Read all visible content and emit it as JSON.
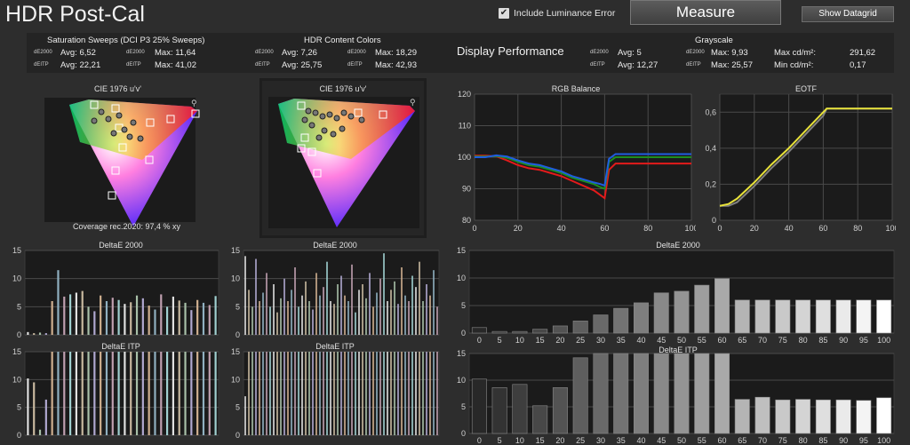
{
  "header": {
    "title": "HDR Post-Cal",
    "include_luminance_label": "Include Luminance Error",
    "measure_label": "Measure",
    "show_datagrid_label": "Show Datagrid"
  },
  "stats": {
    "saturation": {
      "title": "Saturation Sweeps (DCI P3 25% Sweeps)",
      "de2000_tag": "dE2000",
      "deitp_tag": "dEITP",
      "de2000_avg": "Avg: 6,52",
      "de2000_max": "Max: 11,64",
      "deitp_avg": "Avg: 22,21",
      "deitp_max": "Max: 41,02"
    },
    "hdr_colors": {
      "title": "HDR Content Colors",
      "de2000_tag": "dE2000",
      "deitp_tag": "dEITP",
      "de2000_avg": "Avg: 7,26",
      "de2000_max": "Max: 18,29",
      "deitp_avg": "Avg: 25,75",
      "deitp_max": "Max: 42,93"
    },
    "display_performance": "Display Performance",
    "grayscale": {
      "title": "Grayscale",
      "de2000_tag": "dE2000",
      "deitp_tag": "dEITP",
      "de2000_avg": "Avg: 5",
      "de2000_max": "Max: 9,93",
      "deitp_avg": "Avg: 12,27",
      "deitp_max": "Max: 25,57",
      "max_cd_label": "Max cd/m²:",
      "max_cd": "291,62",
      "min_cd_label": "Min cd/m²:",
      "min_cd": "0,17"
    }
  },
  "cie": {
    "left_title": "CIE 1976 u'v'",
    "right_title": "CIE 1976 u'v'",
    "coverage": "Coverage rec.2020:  97,4 % xy"
  },
  "colors": {
    "background": "#2d2d2d",
    "plot_bg": "#1b1b1b",
    "red": "#e31b1b",
    "green": "#1e8e1e",
    "blue": "#1f5de0",
    "eotf_target": "#808080",
    "eotf_measured": "#e8e23a"
  },
  "chart_data": [
    {
      "type": "line",
      "title": "RGB Balance",
      "xlim": [
        0,
        100
      ],
      "ylim": [
        80,
        120
      ],
      "xticks": [
        "0",
        "20",
        "40",
        "60",
        "80",
        "100"
      ],
      "yticks": [
        "80",
        "90",
        "100",
        "110",
        "120"
      ],
      "grid": true,
      "series": [
        {
          "color": "#e31b1b",
          "x": [
            0,
            5,
            10,
            15,
            20,
            25,
            30,
            35,
            40,
            45,
            50,
            55,
            58,
            60,
            62,
            65,
            70,
            75,
            80,
            85,
            90,
            95,
            100
          ],
          "y": [
            100.5,
            100.5,
            100.3,
            99,
            97.5,
            96.5,
            96,
            95,
            94,
            92.5,
            91,
            89.5,
            88,
            87,
            96,
            98,
            98,
            98,
            98,
            98,
            98,
            98,
            98
          ]
        },
        {
          "color": "#1e8e1e",
          "x": [
            0,
            5,
            10,
            15,
            20,
            25,
            30,
            35,
            40,
            45,
            50,
            55,
            58,
            60,
            62,
            65,
            70,
            75,
            80,
            85,
            90,
            95,
            100
          ],
          "y": [
            100.2,
            100.2,
            100.4,
            99.8,
            98.5,
            97.5,
            97,
            96,
            95,
            93.5,
            92.5,
            91.5,
            90.5,
            90,
            98.5,
            100,
            100,
            100,
            100,
            100,
            100,
            100,
            100
          ]
        },
        {
          "color": "#1f5de0",
          "x": [
            0,
            5,
            10,
            15,
            20,
            25,
            30,
            35,
            40,
            45,
            50,
            55,
            58,
            60,
            62,
            65,
            70,
            75,
            80,
            85,
            90,
            95,
            100
          ],
          "y": [
            100,
            100,
            100.6,
            100.2,
            99,
            98,
            97.5,
            96.5,
            95.5,
            94,
            93,
            92,
            91.5,
            91,
            99.5,
            101,
            101,
            101,
            101,
            101,
            101,
            101,
            101
          ]
        }
      ]
    },
    {
      "type": "line",
      "title": "EOTF",
      "xlim": [
        0,
        100
      ],
      "ylim": [
        0,
        0.7
      ],
      "xticks": [
        "0",
        "20",
        "40",
        "60",
        "80",
        "100"
      ],
      "yticks": [
        "0",
        "0,2",
        "0,4",
        "0,6"
      ],
      "grid": true,
      "series": [
        {
          "color": "#808080",
          "x": [
            0,
            5,
            10,
            20,
            30,
            40,
            50,
            60,
            62,
            65,
            70,
            80,
            90,
            100
          ],
          "y": [
            0.08,
            0.08,
            0.1,
            0.19,
            0.29,
            0.38,
            0.48,
            0.58,
            0.62,
            0.62,
            0.62,
            0.62,
            0.62,
            0.62
          ]
        },
        {
          "color": "#e8e23a",
          "x": [
            0,
            5,
            10,
            20,
            30,
            40,
            50,
            60,
            62,
            65,
            70,
            80,
            90,
            100
          ],
          "y": [
            0.08,
            0.09,
            0.12,
            0.21,
            0.31,
            0.4,
            0.5,
            0.6,
            0.62,
            0.62,
            0.62,
            0.62,
            0.62,
            0.62
          ]
        }
      ]
    },
    {
      "type": "bar",
      "title": "DeltaE 2000",
      "ylim": [
        0,
        15
      ],
      "yticks": [
        "0",
        "5",
        "10",
        "15"
      ],
      "categories": [
        "0",
        "5",
        "10",
        "15",
        "20",
        "25",
        "30",
        "35",
        "40",
        "45",
        "50",
        "55",
        "60",
        "65",
        "70",
        "75",
        "80",
        "85",
        "90",
        "95",
        "100"
      ],
      "values": [
        1,
        0.3,
        0.3,
        0.7,
        1.3,
        2.2,
        3.3,
        4.5,
        5.5,
        7.3,
        7.6,
        8.7,
        9.9,
        6,
        6,
        6,
        6,
        6,
        6,
        6,
        6
      ]
    },
    {
      "type": "bar",
      "title": "DeltaE ITP",
      "ylim": [
        0,
        15
      ],
      "yticks": [
        "0",
        "5",
        "10",
        "15"
      ],
      "categories": [
        "0",
        "5",
        "10",
        "15",
        "20",
        "25",
        "30",
        "35",
        "40",
        "45",
        "50",
        "55",
        "60",
        "65",
        "70",
        "75",
        "80",
        "85",
        "90",
        "95",
        "100"
      ],
      "values": [
        10.2,
        8.6,
        9.2,
        5.2,
        8.6,
        14.2,
        15,
        15,
        15,
        15,
        15,
        15,
        15,
        6.4,
        6.8,
        6.3,
        6.4,
        6.3,
        6.3,
        6.2,
        6.7
      ]
    },
    {
      "type": "bar",
      "title": "DeltaE 2000",
      "ylim": [
        0,
        15
      ],
      "yticks": [
        "0",
        "5",
        "10",
        "15"
      ],
      "values": [
        0.5,
        0.3,
        0.4,
        0.3,
        6,
        11.5,
        6.8,
        7.2,
        7.5,
        7.8,
        5,
        4.2,
        7,
        6,
        6.6,
        6.2,
        5.5,
        5.8,
        7,
        6.5,
        5.2,
        4.5,
        7.2,
        5,
        6.8,
        6.1,
        5.7,
        4.4,
        6.2,
        5.7,
        5.3,
        6.9
      ]
    },
    {
      "type": "bar",
      "title": "DeltaE ITP",
      "ylim": [
        0,
        15
      ],
      "yticks": [
        "0",
        "5",
        "10",
        "15"
      ],
      "values": [
        10.2,
        9.5,
        1,
        6.4,
        15,
        15,
        15,
        15,
        15,
        15,
        15,
        15,
        15,
        15,
        15,
        15,
        15,
        15,
        15,
        15,
        15,
        15,
        15,
        15,
        15,
        15,
        15,
        15,
        15,
        15,
        15,
        15
      ]
    },
    {
      "type": "bar",
      "title": "DeltaE 2000",
      "ylim": [
        0,
        15
      ],
      "yticks": [
        "0",
        "5",
        "10",
        "15"
      ],
      "values": [
        14,
        8,
        5,
        13.5,
        6,
        7.5,
        11,
        5,
        9,
        4,
        6.5,
        10,
        6,
        8,
        12,
        5,
        7,
        9.5,
        6,
        4.5,
        11,
        7,
        8.5,
        13,
        6,
        5.5,
        9,
        10.5,
        7,
        6,
        12.5,
        4,
        8,
        9,
        6.5,
        11,
        5,
        7.5,
        10,
        14.5,
        6,
        8,
        9.5,
        5.5,
        12,
        7,
        6,
        10.5,
        8.5,
        13,
        6,
        9,
        7,
        11.5,
        5
      ]
    },
    {
      "type": "bar",
      "title": "DeltaE ITP",
      "ylim": [
        0,
        15
      ],
      "yticks": [
        "0",
        "5",
        "10",
        "15"
      ],
      "values": [
        7,
        15,
        15,
        15,
        15,
        15,
        15,
        15,
        15,
        15,
        15,
        15,
        15,
        15,
        15,
        15,
        15,
        15,
        15,
        15,
        15,
        15,
        15,
        15,
        15,
        15,
        15,
        15,
        15,
        15,
        15,
        15,
        15,
        15,
        15,
        15,
        15,
        15,
        15,
        15,
        15,
        15,
        15,
        15,
        15,
        15,
        15,
        15,
        15,
        15,
        15,
        15,
        15,
        15,
        15
      ]
    }
  ]
}
